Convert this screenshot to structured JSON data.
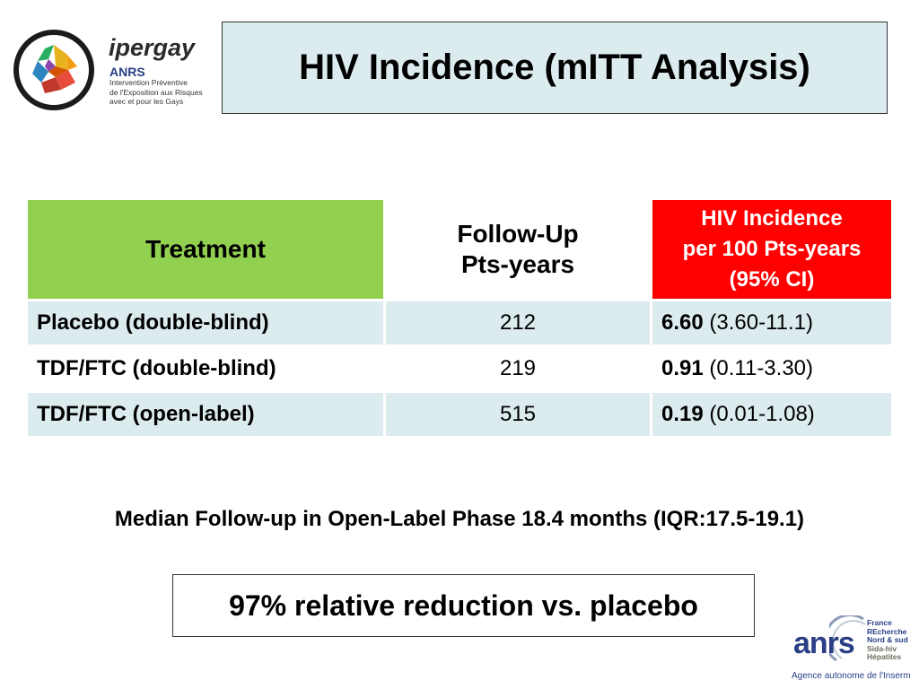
{
  "logo": {
    "brand": "ipergay",
    "org": "ANRS",
    "subtitle_lines": [
      "Intervention Préventive",
      "de l'Exposition aux Risques",
      "avec et pour les Gays"
    ]
  },
  "title": "HIV Incidence (mITT Analysis)",
  "table": {
    "headers": {
      "treatment": "Treatment",
      "followup_lines": [
        "Follow-Up",
        "Pts-years"
      ],
      "incidence_lines": [
        "HIV Incidence",
        "per 100 Pts-years",
        "(95% CI)"
      ]
    },
    "rows": [
      {
        "treatment": "Placebo (double-blind)",
        "followup": "212",
        "incidence": "6.60",
        "ci": "(3.60-11.1)"
      },
      {
        "treatment": "TDF/FTC (double-blind)",
        "followup": "219",
        "incidence": "0.91",
        "ci": "(0.11-3.30)"
      },
      {
        "treatment": "TDF/FTC (open-label)",
        "followup": "515",
        "incidence": "0.19",
        "ci": "(0.01-1.08)"
      }
    ]
  },
  "median_note": "Median Follow-up in Open-Label Phase 18.4 months (IQR:17.5-19.1)",
  "reduction": "97% relative reduction vs. placebo",
  "anrs_logo": {
    "mark": "anrs",
    "lines": [
      "France",
      "REcherche",
      "Nord & sud",
      "Sida-hiv",
      "Hépatites"
    ],
    "agency": "Agence autonome de l'Inserm"
  },
  "colors": {
    "title_bg": "#dcebee",
    "treatment_header": "#92d050",
    "incidence_header": "#ff0000",
    "row_shade": "#dcebee"
  }
}
